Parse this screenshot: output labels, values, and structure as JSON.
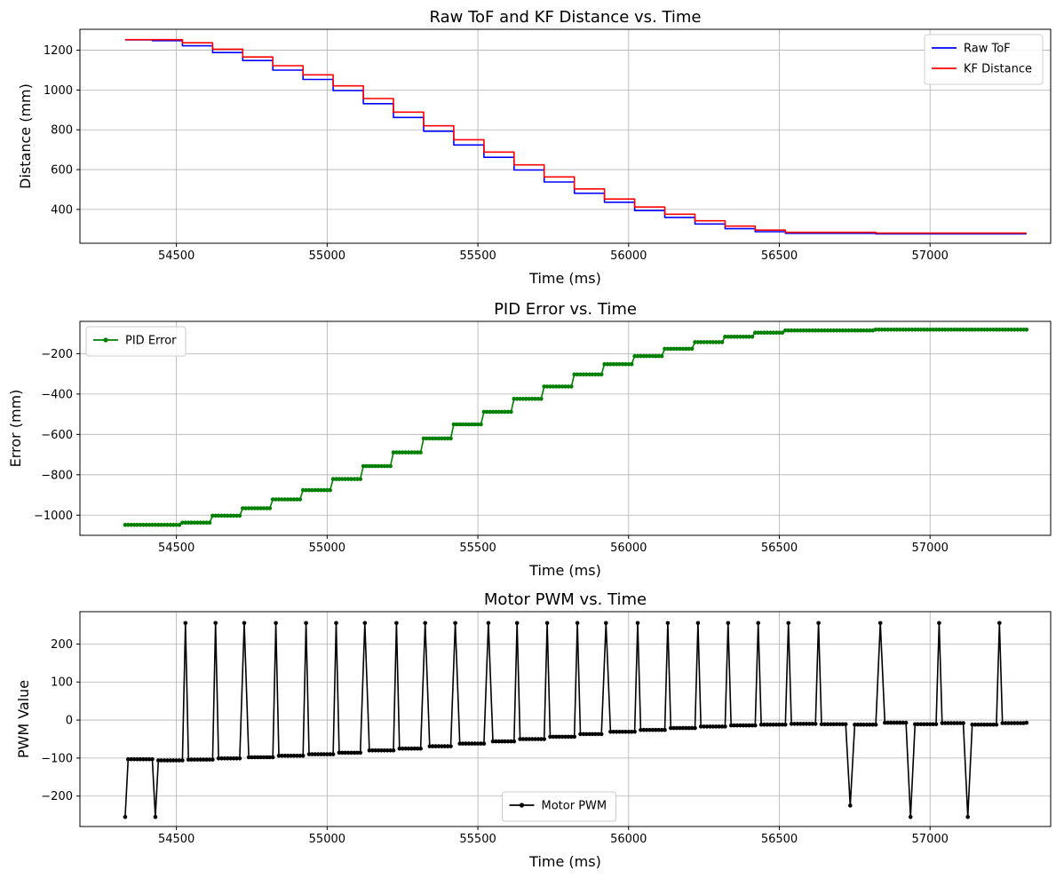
{
  "chart_data": [
    {
      "type": "line",
      "title": "Raw ToF and KF Distance vs. Time",
      "xlabel": "Time (ms)",
      "ylabel": "Distance (mm)",
      "xlim": [
        54180,
        57400
      ],
      "ylim": [
        230,
        1305
      ],
      "xticks": [
        54500,
        55000,
        55500,
        56000,
        56500,
        57000
      ],
      "yticks": [
        400,
        600,
        800,
        1000,
        1200
      ],
      "grid": true,
      "legend": "top-right",
      "series": [
        {
          "name": "Raw ToF",
          "color": "#0000ff",
          "x": [
            54330,
            54420,
            54420,
            54520,
            54520,
            54620,
            54620,
            54720,
            54720,
            54820,
            54820,
            54920,
            54920,
            55020,
            55020,
            55120,
            55120,
            55220,
            55220,
            55320,
            55320,
            55420,
            55420,
            55520,
            55520,
            55620,
            55620,
            55720,
            55720,
            55820,
            55820,
            55920,
            55920,
            56020,
            56020,
            56120,
            56120,
            56220,
            56220,
            56320,
            56320,
            56420,
            56420,
            56520,
            56520,
            56820,
            56820,
            57320
          ],
          "y": [
            1252,
            1252,
            1248,
            1248,
            1222,
            1222,
            1188,
            1188,
            1148,
            1148,
            1100,
            1100,
            1053,
            1053,
            997,
            997,
            931,
            931,
            862,
            862,
            793,
            793,
            724,
            724,
            662,
            662,
            598,
            598,
            538,
            538,
            481,
            481,
            436,
            436,
            394,
            394,
            360,
            360,
            327,
            327,
            303,
            303,
            288,
            288,
            280,
            280,
            277,
            277
          ]
        },
        {
          "name": "KF Distance",
          "color": "#ff0000",
          "x": [
            54330,
            54520,
            54520,
            54620,
            54620,
            54720,
            54720,
            54820,
            54820,
            54920,
            54920,
            55020,
            55020,
            55120,
            55120,
            55220,
            55220,
            55320,
            55320,
            55420,
            55420,
            55520,
            55520,
            55620,
            55620,
            55720,
            55720,
            55820,
            55820,
            55920,
            55920,
            56020,
            56020,
            56120,
            56120,
            56220,
            56220,
            56320,
            56320,
            56420,
            56420,
            56520,
            56520,
            56820,
            56820,
            57320
          ],
          "y": [
            1253,
            1253,
            1237,
            1237,
            1205,
            1205,
            1166,
            1166,
            1122,
            1122,
            1076,
            1076,
            1021,
            1021,
            957,
            957,
            889,
            889,
            820,
            820,
            750,
            750,
            688,
            688,
            624,
            624,
            563,
            563,
            503,
            503,
            452,
            452,
            412,
            412,
            376,
            376,
            343,
            343,
            316,
            316,
            296,
            296,
            285,
            285,
            281,
            281
          ]
        }
      ]
    },
    {
      "type": "line",
      "title": "PID Error vs. Time",
      "xlabel": "Time (ms)",
      "ylabel": "Error (mm)",
      "xlim": [
        54180,
        57400
      ],
      "ylim": [
        -1100,
        -40
      ],
      "xticks": [
        54500,
        55000,
        55500,
        56000,
        56500,
        57000
      ],
      "yticks": [
        -1000,
        -800,
        -600,
        -400,
        -200
      ],
      "grid": true,
      "legend": "top-left",
      "series": [
        {
          "name": "PID Error",
          "color": "#008000",
          "marker": "dot",
          "steps": [
            [
              54330,
              -1048
            ],
            [
              54520,
              -1037
            ],
            [
              54620,
              -1003
            ],
            [
              54720,
              -966
            ],
            [
              54820,
              -922
            ],
            [
              54920,
              -876
            ],
            [
              55020,
              -821
            ],
            [
              55120,
              -757
            ],
            [
              55220,
              -689
            ],
            [
              55320,
              -620
            ],
            [
              55420,
              -550
            ],
            [
              55520,
              -488
            ],
            [
              55620,
              -424
            ],
            [
              55720,
              -363
            ],
            [
              55820,
              -303
            ],
            [
              55920,
              -252
            ],
            [
              56020,
              -212
            ],
            [
              56120,
              -176
            ],
            [
              56220,
              -143
            ],
            [
              56320,
              -116
            ],
            [
              56420,
              -96
            ],
            [
              56520,
              -85
            ],
            [
              56820,
              -81
            ],
            [
              57320,
              -81
            ]
          ]
        }
      ]
    },
    {
      "type": "line",
      "title": "Motor PWM vs. Time",
      "xlabel": "Time (ms)",
      "ylabel": "PWM Value",
      "xlim": [
        54180,
        57400
      ],
      "ylim": [
        -280,
        285
      ],
      "xticks": [
        54500,
        55000,
        55500,
        56000,
        56500,
        57000
      ],
      "yticks": [
        -200,
        -100,
        0,
        100,
        200
      ],
      "grid": true,
      "legend": "lower-center",
      "series": [
        {
          "name": "Motor PWM",
          "color": "#000000",
          "marker": "dot",
          "spike_up_value": 255,
          "spikes_up_at": [
            54530,
            54630,
            54725,
            54830,
            54930,
            55030,
            55125,
            55230,
            55325,
            55425,
            55535,
            55630,
            55730,
            55830,
            55925,
            56030,
            56130,
            56230,
            56330,
            56430,
            56530,
            56630,
            56835,
            57030,
            57230
          ],
          "spikes_down": [
            [
              54330,
              -255
            ],
            [
              54430,
              -255
            ],
            [
              56735,
              -225
            ],
            [
              56935,
              -255
            ],
            [
              57125,
              -255
            ]
          ],
          "baseline_steps": [
            [
              54340,
              -103
            ],
            [
              54440,
              -106
            ],
            [
              54540,
              -104
            ],
            [
              54640,
              -101
            ],
            [
              54740,
              -98
            ],
            [
              54840,
              -94
            ],
            [
              54940,
              -90
            ],
            [
              55040,
              -86
            ],
            [
              55140,
              -80
            ],
            [
              55240,
              -75
            ],
            [
              55340,
              -69
            ],
            [
              55440,
              -62
            ],
            [
              55540,
              -56
            ],
            [
              55640,
              -50
            ],
            [
              55740,
              -44
            ],
            [
              55840,
              -37
            ],
            [
              55940,
              -31
            ],
            [
              56040,
              -26
            ],
            [
              56140,
              -21
            ],
            [
              56240,
              -17
            ],
            [
              56340,
              -14
            ],
            [
              56440,
              -12
            ],
            [
              56540,
              -10
            ],
            [
              56640,
              -11
            ],
            [
              56745,
              -12
            ],
            [
              56845,
              -7
            ],
            [
              56945,
              -11
            ],
            [
              57040,
              -8
            ],
            [
              57135,
              -12
            ],
            [
              57240,
              -8
            ],
            [
              57320,
              -7
            ]
          ]
        }
      ]
    }
  ]
}
